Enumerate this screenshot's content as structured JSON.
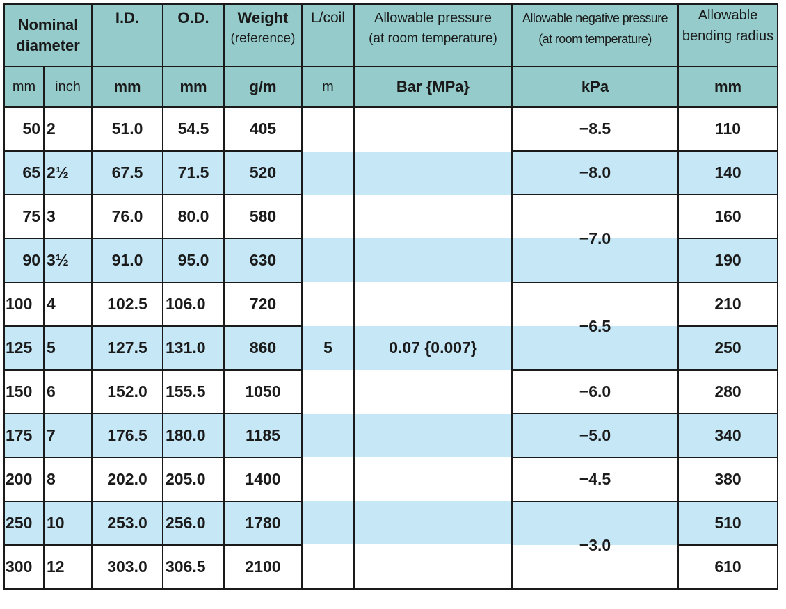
{
  "headers": {
    "nominal_diameter": "Nominal diameter",
    "id": "I.D.",
    "od": "O.D.",
    "weight": "Weight",
    "weight_sub": "(reference)",
    "l_coil": "L/coil",
    "allowable_pressure": "Allowable pressure",
    "allowable_pressure_sub": "(at room temperature)",
    "allowable_negative_pressure": "Allowable negative pressure",
    "allowable_negative_pressure_sub": "(at room temperature)",
    "bending_radius": "Allowable bending radius"
  },
  "units": {
    "mm": "mm",
    "inch": "inch",
    "id": "mm",
    "od": "mm",
    "weight": "g/m",
    "l_coil": "m",
    "pressure": "Bar {MPa}",
    "negative_pressure": "kPa",
    "bending": "mm"
  },
  "rows": [
    {
      "mm": "50",
      "inch": "2",
      "id": "51.0",
      "od": "54.5",
      "weight": "405",
      "bend": "110"
    },
    {
      "mm": "65",
      "inch": "2½",
      "id": "67.5",
      "od": "71.5",
      "weight": "520",
      "bend": "140"
    },
    {
      "mm": "75",
      "inch": "3",
      "id": "76.0",
      "od": "80.0",
      "weight": "580",
      "bend": "160"
    },
    {
      "mm": "90",
      "inch": "3½",
      "id": "91.0",
      "od": "95.0",
      "weight": "630",
      "bend": "190"
    },
    {
      "mm": "100",
      "inch": "4",
      "id": "102.5",
      "od": "106.0",
      "weight": "720",
      "bend": "210"
    },
    {
      "mm": "125",
      "inch": "5",
      "id": "127.5",
      "od": "131.0",
      "weight": "860",
      "bend": "250"
    },
    {
      "mm": "150",
      "inch": "6",
      "id": "152.0",
      "od": "155.5",
      "weight": "1050",
      "bend": "280"
    },
    {
      "mm": "175",
      "inch": "7",
      "id": "176.5",
      "od": "180.0",
      "weight": "1185",
      "bend": "340"
    },
    {
      "mm": "200",
      "inch": "8",
      "id": "202.0",
      "od": "205.0",
      "weight": "1400",
      "bend": "380"
    },
    {
      "mm": "250",
      "inch": "10",
      "id": "253.0",
      "od": "256.0",
      "weight": "1780",
      "bend": "510"
    },
    {
      "mm": "300",
      "inch": "12",
      "id": "303.0",
      "od": "306.5",
      "weight": "2100",
      "bend": "610"
    }
  ],
  "shared": {
    "l_coil": "5",
    "allowable_pressure": "0.07 {0.007}"
  },
  "negative_pressure": [
    "−8.5",
    "−8.0",
    "−7.0",
    "−6.5",
    "−6.0",
    "−5.0",
    "−4.5",
    "−3.0"
  ],
  "colors": {
    "header_bg": "#95cccb",
    "stripe_bg": "#c6e7f6"
  }
}
